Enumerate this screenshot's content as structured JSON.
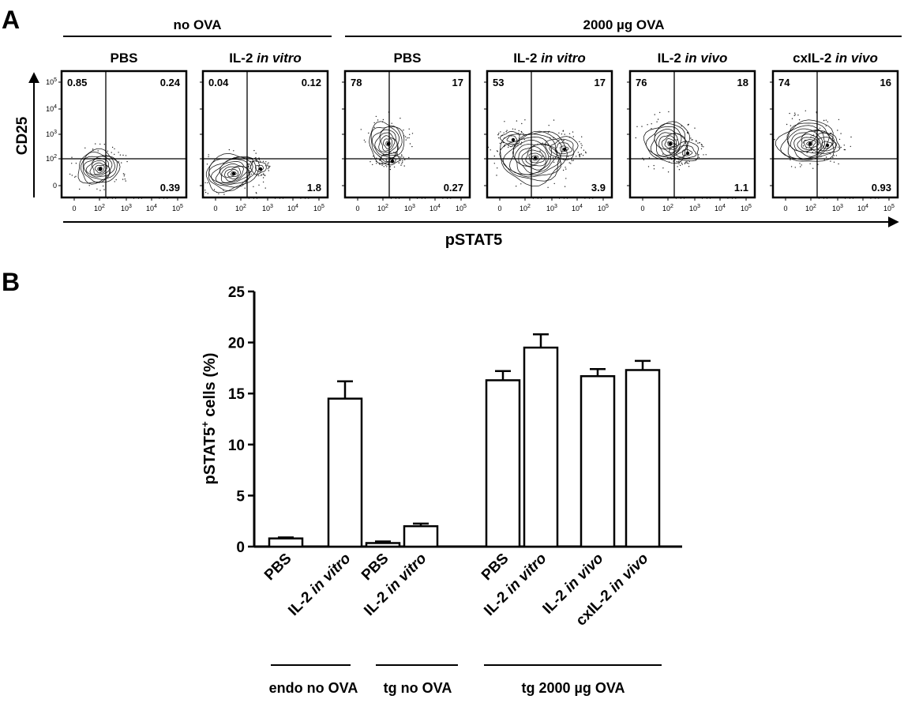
{
  "panel_a": {
    "letter": "A",
    "header_left": "no OVA",
    "header_right": "2000 µg OVA",
    "y_axis_label": "CD25",
    "x_axis_label": "pSTAT5",
    "tick_labels": [
      "0",
      "10",
      "10",
      "10",
      "10"
    ],
    "tick_exponents": [
      "",
      "2",
      "3",
      "4",
      "5"
    ],
    "plots": [
      {
        "title_main": "PBS",
        "title_italic": "",
        "ul": "0.85",
        "ur": "0.24",
        "lr": "0.39"
      },
      {
        "title_main": "IL-2 ",
        "title_italic": "in vitro",
        "ul": "0.04",
        "ur": "0.12",
        "lr": "1.8"
      },
      {
        "title_main": "PBS",
        "title_italic": "",
        "ul": "78",
        "ur": "17",
        "lr": "0.27"
      },
      {
        "title_main": "IL-2 ",
        "title_italic": "in vitro",
        "ul": "53",
        "ur": "17",
        "lr": "3.9"
      },
      {
        "title_main": "IL-2 ",
        "title_italic": "in vivo",
        "ul": "76",
        "ur": "18",
        "lr": "1.1"
      },
      {
        "title_main": "cxIL-2 ",
        "title_italic": "in vivo",
        "ul": "74",
        "ur": "16",
        "lr": "0.93"
      }
    ]
  },
  "panel_b": {
    "letter": "B",
    "ylabel_main": "pSTAT5",
    "ylabel_sup": "+",
    "ylabel_rest": " cells (%)",
    "y_ticks": [
      "0",
      "5",
      "10",
      "15",
      "20",
      "25"
    ],
    "bar_labels": [
      {
        "main": "PBS",
        "italic": ""
      },
      {
        "main": "IL-2 ",
        "italic": "in vitro"
      },
      {
        "main": "PBS",
        "italic": ""
      },
      {
        "main": "IL-2 ",
        "italic": "in vitro"
      },
      {
        "main": "PBS",
        "italic": ""
      },
      {
        "main": "IL-2 ",
        "italic": "in vitro"
      },
      {
        "main": "IL-2 ",
        "italic": "in vivo"
      },
      {
        "main": "cxIL-2 ",
        "italic": "in vivo"
      }
    ],
    "groups": [
      "endo no OVA",
      "tg no OVA",
      "tg 2000 µg OVA"
    ]
  },
  "chart_data": [
    {
      "type": "scatter",
      "description_kind": "flow cytometry contour plots (quadrant percentages)",
      "xlabel": "pSTAT5",
      "ylabel": "CD25",
      "panels": [
        {
          "group": "no OVA",
          "condition": "PBS",
          "upper_left": 0.85,
          "upper_right": 0.24,
          "lower_right": 0.39
        },
        {
          "group": "no OVA",
          "condition": "IL-2 in vitro",
          "upper_left": 0.04,
          "upper_right": 0.12,
          "lower_right": 1.8
        },
        {
          "group": "2000 µg OVA",
          "condition": "PBS",
          "upper_left": 78,
          "upper_right": 17,
          "lower_right": 0.27
        },
        {
          "group": "2000 µg OVA",
          "condition": "IL-2 in vitro",
          "upper_left": 53,
          "upper_right": 17,
          "lower_right": 3.9
        },
        {
          "group": "2000 µg OVA",
          "condition": "IL-2 in vivo",
          "upper_left": 76,
          "upper_right": 18,
          "lower_right": 1.1
        },
        {
          "group": "2000 µg OVA",
          "condition": "cxIL-2 in vivo",
          "upper_left": 74,
          "upper_right": 16,
          "lower_right": 0.93
        }
      ]
    },
    {
      "type": "bar",
      "ylabel": "pSTAT5+ cells (%)",
      "ylim": [
        0,
        25
      ],
      "categories": [
        "PBS",
        "IL-2 in vitro",
        "PBS",
        "IL-2 in vitro",
        "PBS",
        "IL-2 in vitro",
        "IL-2 in vivo",
        "cxIL-2 in vivo"
      ],
      "groups": [
        "endo no OVA",
        "endo no OVA",
        "tg no OVA",
        "tg no OVA",
        "tg 2000 µg OVA",
        "tg 2000 µg OVA",
        "tg 2000 µg OVA",
        "tg 2000 µg OVA"
      ],
      "values": [
        0.8,
        14.5,
        0.35,
        2.0,
        16.3,
        19.5,
        16.7,
        17.3
      ],
      "errors": [
        0.1,
        1.7,
        0.15,
        0.25,
        0.9,
        1.3,
        0.7,
        0.9
      ]
    }
  ]
}
